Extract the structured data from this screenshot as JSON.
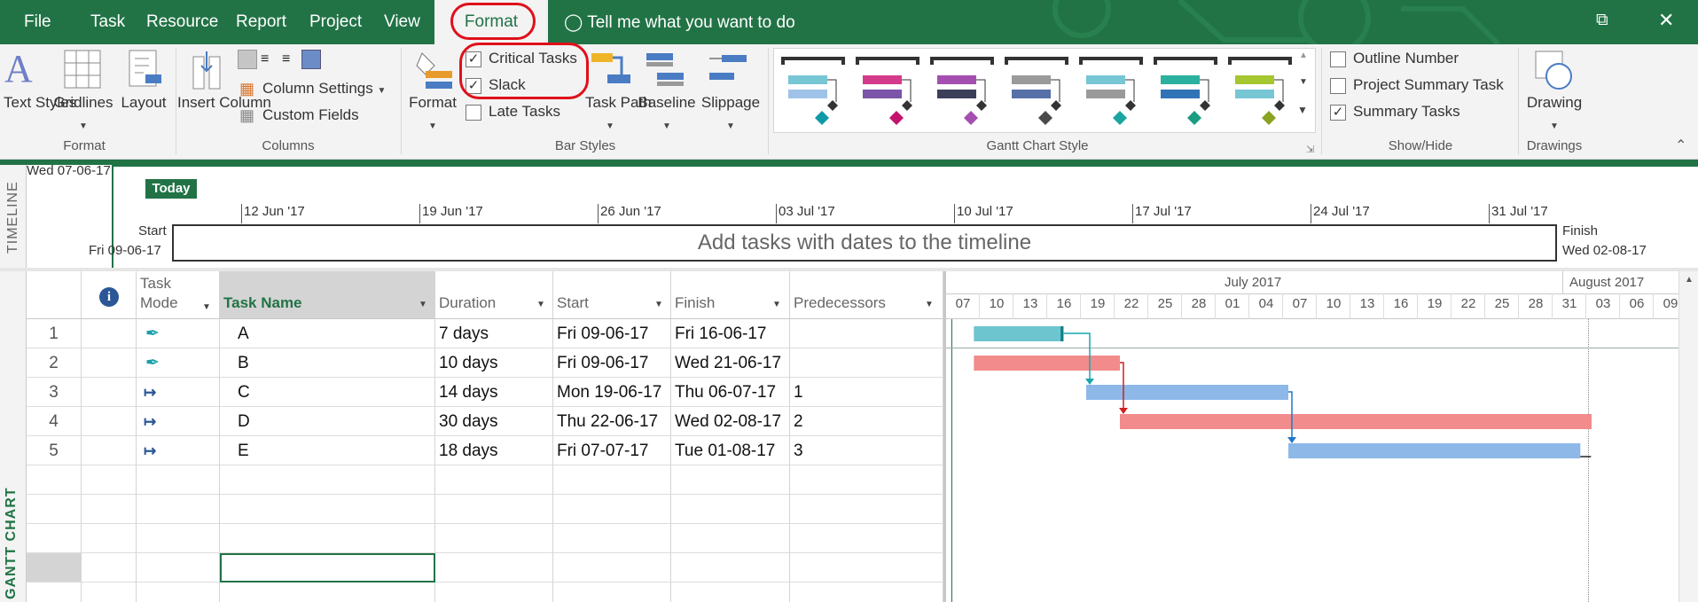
{
  "menu": {
    "file": "File",
    "task": "Task",
    "resource": "Resource",
    "report": "Report",
    "project": "Project",
    "view": "View",
    "format": "Format",
    "tell_me": "Tell me what you want to do"
  },
  "ribbon": {
    "format_group": {
      "label": "Format",
      "text_styles": "Text Styles",
      "gridlines": "Gridlines",
      "layout": "Layout"
    },
    "columns_group": {
      "label": "Columns",
      "insert_column": "Insert Column",
      "column_settings": "Column Settings",
      "custom_fields": "Custom Fields"
    },
    "bar_styles_group": {
      "label": "Bar Styles",
      "format": "Format",
      "critical_tasks": "Critical Tasks",
      "critical_tasks_checked": true,
      "slack": "Slack",
      "slack_checked": true,
      "late_tasks": "Late Tasks",
      "late_tasks_checked": false,
      "task_path": "Task Path",
      "baseline": "Baseline",
      "slippage": "Slippage"
    },
    "gantt_style_group": {
      "label": "Gantt Chart Style",
      "styles": [
        {
          "top": "#77c6d4",
          "bottom": "#9fc3e8",
          "diamond": "#0f9aa8"
        },
        {
          "top": "#d43a8a",
          "bottom": "#7a55a8",
          "diamond": "#c4126f"
        },
        {
          "top": "#a44fb0",
          "bottom": "#3b3f5a",
          "diamond": "#a44fb0"
        },
        {
          "top": "#9a9a9a",
          "bottom": "#5770a8",
          "diamond": "#4a4a4a"
        },
        {
          "top": "#77c6d4",
          "bottom": "#9a9a9a",
          "diamond": "#1ba5a0"
        },
        {
          "top": "#2bb1a0",
          "bottom": "#3074b5",
          "diamond": "#1a9c83"
        },
        {
          "top": "#a6c631",
          "bottom": "#77c6d4",
          "diamond": "#8aa320"
        }
      ]
    },
    "show_hide_group": {
      "label": "Show/Hide",
      "outline_number": "Outline Number",
      "outline_number_checked": false,
      "project_summary_task": "Project Summary Task",
      "project_summary_task_checked": false,
      "summary_tasks": "Summary Tasks",
      "summary_tasks_checked": true
    },
    "drawings_group": {
      "label": "Drawings",
      "drawing": "Drawing"
    }
  },
  "timeline": {
    "side_label": "TIMELINE",
    "current_date": "Wed 07-06-17",
    "today": "Today",
    "ticks": [
      "12 Jun '17",
      "19 Jun '17",
      "26 Jun '17",
      "03 Jul '17",
      "10 Jul '17",
      "17 Jul '17",
      "24 Jul '17",
      "31 Jul '17"
    ],
    "start_label": "Start",
    "start_date": "Fri 09-06-17",
    "finish_label": "Finish",
    "finish_date": "Wed 02-08-17",
    "placeholder": "Add tasks with dates to the timeline"
  },
  "table": {
    "side_label": "GANTT CHART",
    "headers": {
      "info": "i",
      "task_mode": "Task Mode",
      "task_name": "Task Name",
      "duration": "Duration",
      "start": "Start",
      "finish": "Finish",
      "predecessors": "Predecessors"
    },
    "rows": [
      {
        "id": "1",
        "name": "A",
        "duration": "7 days",
        "start": "Fri 09-06-17",
        "finish": "Fri 16-06-17",
        "predecessors": "",
        "mode": "manual"
      },
      {
        "id": "2",
        "name": "B",
        "duration": "10 days",
        "start": "Fri 09-06-17",
        "finish": "Wed 21-06-17",
        "predecessors": "",
        "mode": "manual"
      },
      {
        "id": "3",
        "name": "C",
        "duration": "14 days",
        "start": "Mon 19-06-17",
        "finish": "Thu 06-07-17",
        "predecessors": "1",
        "mode": "auto"
      },
      {
        "id": "4",
        "name": "D",
        "duration": "30 days",
        "start": "Thu 22-06-17",
        "finish": "Wed 02-08-17",
        "predecessors": "2",
        "mode": "auto"
      },
      {
        "id": "5",
        "name": "E",
        "duration": "18 days",
        "start": "Fri 07-07-17",
        "finish": "Tue 01-08-17",
        "predecessors": "3",
        "mode": "auto"
      }
    ]
  },
  "gantt": {
    "months": [
      "July 2017",
      "August 2017"
    ],
    "days": [
      "07",
      "10",
      "13",
      "16",
      "19",
      "22",
      "25",
      "28",
      "01",
      "04",
      "07",
      "10",
      "13",
      "16",
      "19",
      "22",
      "25",
      "28",
      "31",
      "03",
      "06",
      "09"
    ],
    "colors": {
      "normal": "#8db8e8",
      "critical": "#f28b8b",
      "manual": "#6cc5cf",
      "link_blue": "#1f78c6",
      "link_red": "#d21f1f",
      "link_teal": "#18a6b0"
    }
  }
}
